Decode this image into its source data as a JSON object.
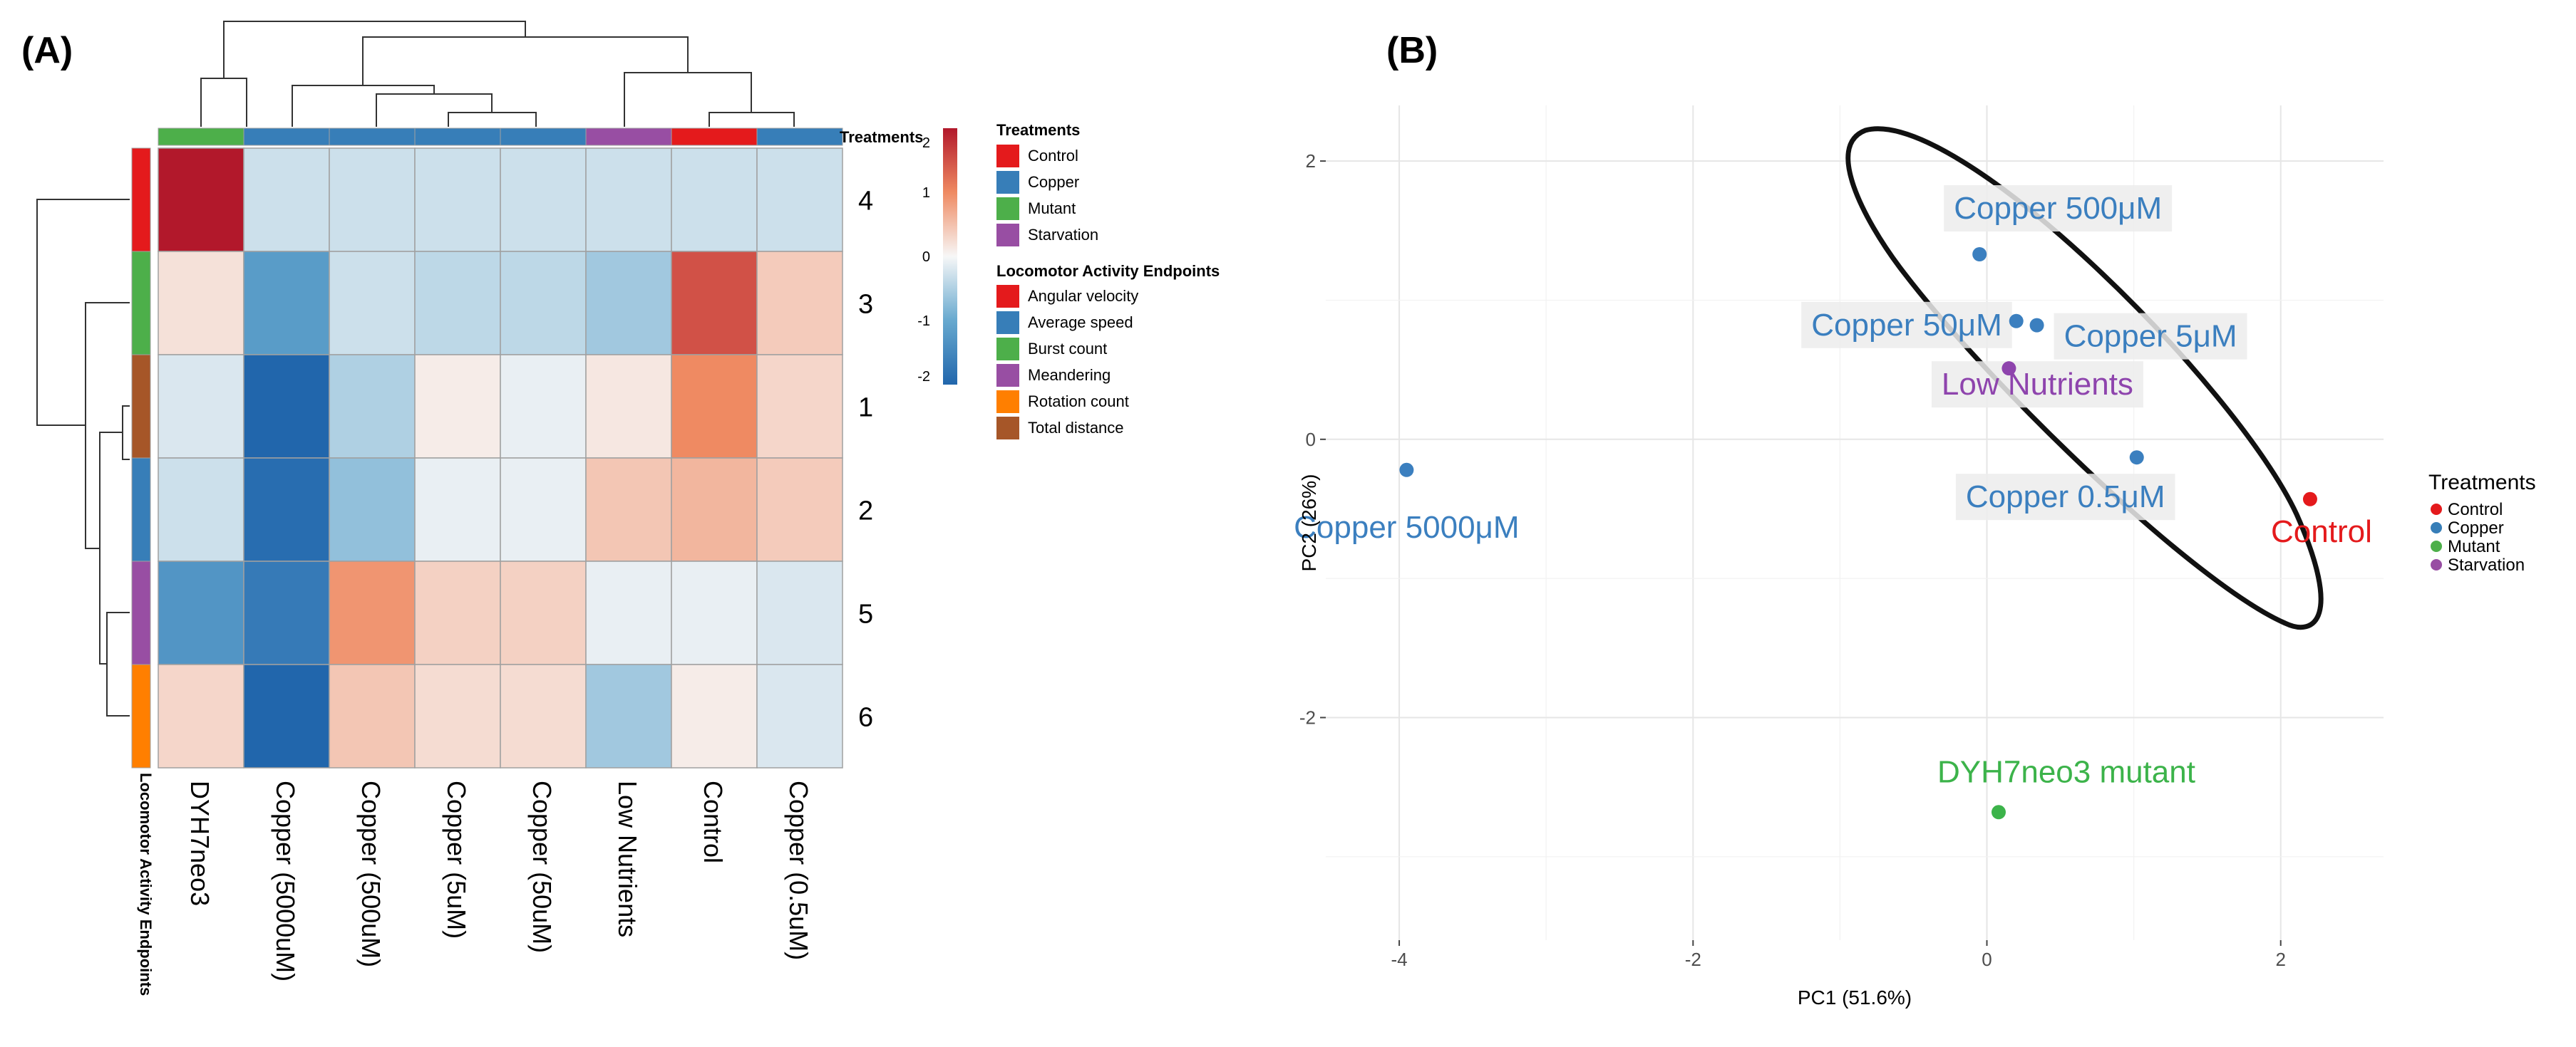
{
  "panels": {
    "a": "(A)",
    "b": "(B)"
  },
  "chart_data": [
    {
      "type": "heatmap",
      "panel": "(A)",
      "columns": [
        "DYH7neo3",
        "Copper (5000uM)",
        "Copper (500uM)",
        "Copper (5uM)",
        "Copper (50uM)",
        "Low Nutrients",
        "Control",
        "Copper (0.5uM)"
      ],
      "column_treatments": [
        "Mutant",
        "Copper",
        "Copper",
        "Copper",
        "Copper",
        "Starvation",
        "Control",
        "Copper"
      ],
      "rows": [
        "4",
        "3",
        "1",
        "2",
        "5",
        "6"
      ],
      "row_endpoints": [
        "Angular velocity",
        "Burst count",
        "Total distance",
        "Average speed",
        "Meandering",
        "Rotation count"
      ],
      "values": [
        [
          2.2,
          -0.3,
          -0.3,
          -0.3,
          -0.3,
          -0.3,
          -0.3,
          -0.3
        ],
        [
          0.2,
          -1.2,
          -0.3,
          -0.4,
          -0.4,
          -0.6,
          1.5,
          0.4
        ],
        [
          -0.2,
          -2.0,
          -0.5,
          0.1,
          -0.1,
          0.15,
          1.0,
          0.3
        ],
        [
          -0.3,
          -1.9,
          -0.7,
          -0.1,
          -0.1,
          0.45,
          0.6,
          0.4
        ],
        [
          -1.3,
          -1.7,
          0.9,
          0.35,
          0.35,
          -0.1,
          -0.1,
          -0.2
        ],
        [
          0.3,
          -2.0,
          0.45,
          0.25,
          0.25,
          -0.6,
          0.1,
          -0.2
        ]
      ],
      "color_scale": {
        "min": -2,
        "max": 2,
        "ticks": [
          "2",
          "1",
          "0",
          "-1",
          "-2"
        ]
      },
      "top_annotation_label": "Treatments",
      "side_annotation_label": "Locomotor Activity Endpoints",
      "legend": {
        "treatments_title": "Treatments",
        "treatments": [
          {
            "name": "Control",
            "color": "#e41a1c"
          },
          {
            "name": "Copper",
            "color": "#377eb8"
          },
          {
            "name": "Mutant",
            "color": "#4daf4a"
          },
          {
            "name": "Starvation",
            "color": "#984ea3"
          }
        ],
        "endpoints_title": "Locomotor Activity Endpoints",
        "endpoints": [
          {
            "name": "Angular velocity",
            "color": "#e41a1c"
          },
          {
            "name": "Average speed",
            "color": "#377eb8"
          },
          {
            "name": "Burst count",
            "color": "#4daf4a"
          },
          {
            "name": "Meandering",
            "color": "#984ea3"
          },
          {
            "name": "Rotation count",
            "color": "#ff7f00"
          },
          {
            "name": "Total distance",
            "color": "#a65628"
          }
        ]
      }
    },
    {
      "type": "scatter",
      "panel": "(B)",
      "xlabel": "PC1 (51.6%)",
      "ylabel": "PC2 (26%)",
      "xlim": [
        -4.5,
        2.7
      ],
      "ylim": [
        -3.6,
        2.4
      ],
      "xticks": [
        "-4",
        "-2",
        "0",
        "2"
      ],
      "xtick_values": [
        -4,
        -2,
        0,
        2
      ],
      "yticks": [
        "2",
        "0",
        "-2"
      ],
      "ytick_values": [
        2,
        0,
        -2
      ],
      "points": [
        {
          "label": "Copper 5000μM",
          "x": -3.95,
          "y": -0.22,
          "group": "Copper"
        },
        {
          "label": "Copper 500μM",
          "x": -0.05,
          "y": 1.33,
          "group": "Copper"
        },
        {
          "label": "Copper 50μM",
          "x": 0.2,
          "y": 0.85,
          "group": "Copper"
        },
        {
          "label": "Copper 5μM",
          "x": 0.34,
          "y": 0.82,
          "group": "Copper"
        },
        {
          "label": "Low Nutrients",
          "x": 0.15,
          "y": 0.51,
          "group": "Starvation"
        },
        {
          "label": "Copper 0.5μM",
          "x": 1.02,
          "y": -0.13,
          "group": "Copper"
        },
        {
          "label": "Control",
          "x": 2.2,
          "y": -0.43,
          "group": "Control"
        },
        {
          "label": "DYH7neo3 mutant",
          "x": 0.08,
          "y": -2.68,
          "group": "Mutant"
        }
      ],
      "legend": {
        "title": "Treatments",
        "items": [
          {
            "name": "Control",
            "color": "#e41a1c"
          },
          {
            "name": "Copper",
            "color": "#377eb8"
          },
          {
            "name": "Mutant",
            "color": "#4daf4a"
          },
          {
            "name": "Starvation",
            "color": "#984ea3"
          }
        ]
      },
      "group_colors": {
        "Control": "#e41a1c",
        "Copper": "#3b7fbf",
        "Mutant": "#3cb34a",
        "Starvation": "#8e44ad"
      }
    }
  ]
}
